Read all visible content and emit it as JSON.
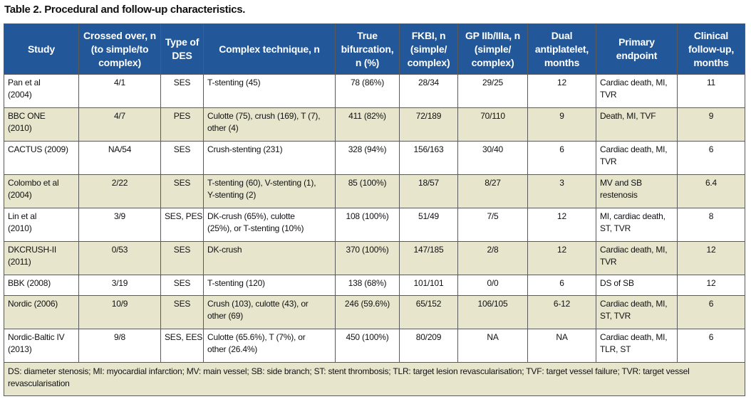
{
  "title": "Table 2. Procedural and follow-up characteristics.",
  "table": {
    "header": [
      [
        "Study"
      ],
      [
        "Crossed over, n",
        "(to simple/to",
        "complex)"
      ],
      [
        "Type of",
        "DES"
      ],
      [
        "Complex technique, n"
      ],
      [
        "True",
        "bifurcation,",
        "n (%)"
      ],
      [
        "FKBI, n",
        "(simple/",
        "complex)"
      ],
      [
        "GP IIb/IIIa, n",
        "(simple/",
        "complex)"
      ],
      [
        "Dual",
        "antiplatelet,",
        "months"
      ],
      [
        "Primary",
        "endpoint"
      ],
      [
        "Clinical",
        "follow-up,",
        "months"
      ]
    ],
    "rows": [
      [
        [
          "Pan et al",
          "(2004)"
        ],
        [
          "4/1"
        ],
        [
          "SES"
        ],
        [
          "T-stenting (45)"
        ],
        [
          "78 (86%)"
        ],
        [
          "28/34"
        ],
        [
          "29/25"
        ],
        [
          "12"
        ],
        [
          "Cardiac death, MI,",
          "TVR"
        ],
        [
          "11"
        ]
      ],
      [
        [
          "BBC ONE",
          "(2010)"
        ],
        [
          "4/7"
        ],
        [
          "PES"
        ],
        [
          "Culotte (75), crush (169), T (7),",
          "other (4)"
        ],
        [
          "411 (82%)"
        ],
        [
          "72/189"
        ],
        [
          "70/110"
        ],
        [
          "9"
        ],
        [
          "Death, MI, TVF"
        ],
        [
          "9"
        ]
      ],
      [
        [
          "CACTUS (2009)"
        ],
        [
          "NA/54"
        ],
        [
          "SES"
        ],
        [
          "Crush-stenting (231)"
        ],
        [
          "328 (94%)"
        ],
        [
          "156/163"
        ],
        [
          "30/40"
        ],
        [
          "6"
        ],
        [
          "Cardiac death, MI,",
          "TVR"
        ],
        [
          "6"
        ]
      ],
      [
        [
          "Colombo et al",
          "(2004)"
        ],
        [
          "2/22"
        ],
        [
          "SES"
        ],
        [
          "T-stenting (60), V-stenting (1),",
          "Y-stenting (2)"
        ],
        [
          "85 (100%)"
        ],
        [
          "18/57"
        ],
        [
          "8/27"
        ],
        [
          "3"
        ],
        [
          "MV and SB",
          "restenosis"
        ],
        [
          "6.4"
        ]
      ],
      [
        [
          "Lin et al",
          "(2010)"
        ],
        [
          "3/9"
        ],
        [
          "SES, PES"
        ],
        [
          "DK-crush (65%), culotte",
          "(25%), or T-stenting (10%)"
        ],
        [
          "108 (100%)"
        ],
        [
          "51/49"
        ],
        [
          "7/5"
        ],
        [
          "12"
        ],
        [
          "MI, cardiac death,",
          "ST, TVR"
        ],
        [
          "8"
        ]
      ],
      [
        [
          "DKCRUSH-II",
          "(2011)"
        ],
        [
          "0/53"
        ],
        [
          "SES"
        ],
        [
          "DK-crush"
        ],
        [
          "370 (100%)"
        ],
        [
          "147/185"
        ],
        [
          "2/8"
        ],
        [
          "12"
        ],
        [
          "Cardiac death, MI,",
          "TVR"
        ],
        [
          "12"
        ]
      ],
      [
        [
          "BBK (2008)"
        ],
        [
          "3/19"
        ],
        [
          "SES"
        ],
        [
          "T-stenting (120)"
        ],
        [
          "138 (68%)"
        ],
        [
          "101/101"
        ],
        [
          "0/0"
        ],
        [
          "6"
        ],
        [
          "DS of SB"
        ],
        [
          "12"
        ]
      ],
      [
        [
          "Nordic (2006)"
        ],
        [
          "10/9"
        ],
        [
          "SES"
        ],
        [
          "Crush (103), culotte (43), or",
          "other (69)"
        ],
        [
          "246 (59.6%)"
        ],
        [
          "65/152"
        ],
        [
          "106/105"
        ],
        [
          "6-12"
        ],
        [
          "Cardiac death, MI,",
          "ST, TVR"
        ],
        [
          "6"
        ]
      ],
      [
        [
          "Nordic-Baltic IV",
          "(2013)"
        ],
        [
          "9/8"
        ],
        [
          "SES, EES"
        ],
        [
          "Culotte (65.6%), T (7%), or",
          "other (26.4%)"
        ],
        [
          "450 (100%)"
        ],
        [
          "80/209"
        ],
        [
          "NA"
        ],
        [
          "NA"
        ],
        [
          "Cardiac death, MI,",
          "TLR, ST"
        ],
        [
          "6"
        ]
      ]
    ],
    "footnote": "DS: diameter stenosis; MI: myocardial infarction; MV: main vessel; SB: side branch; ST: stent thrombosis; TLR: target lesion revascularisation; TVF: target vessel failure; TVR: target vessel revascularisation"
  }
}
